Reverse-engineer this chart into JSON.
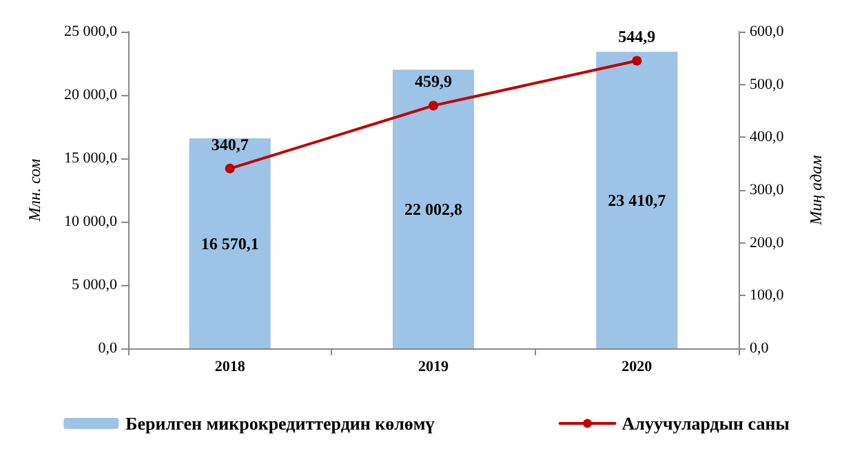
{
  "chart_data": {
    "type": "bar",
    "categories": [
      "2018",
      "2019",
      "2020"
    ],
    "ylabel": "Млн. сом",
    "y2label": "Миң адам",
    "series": [
      {
        "name": "Берилген микрокредиттердин көлөмү",
        "color": "#9dc3e6",
        "values": [
          16570.1,
          22002.8,
          23410.7
        ],
        "value_labels": [
          "16 570,1",
          "22 002,8",
          "23 410,7"
        ]
      },
      {
        "name": "Алуучулардын саны",
        "type": "line",
        "axis": "y2",
        "color": "#c00000",
        "values": [
          340.7,
          459.9,
          544.9
        ],
        "value_labels": [
          "340,7",
          "459,9",
          "544,9"
        ]
      }
    ],
    "ylim": [
      0,
      25000
    ],
    "yticks": [
      {
        "value": 0,
        "label": "0,0"
      },
      {
        "value": 5000,
        "label": "5 000,0"
      },
      {
        "value": 10000,
        "label": "10 000,0"
      },
      {
        "value": 15000,
        "label": "15 000,0"
      },
      {
        "value": 20000,
        "label": "20 000,0"
      },
      {
        "value": 25000,
        "label": "25 000,0"
      }
    ],
    "y2lim": [
      0,
      600
    ],
    "y2ticks": [
      {
        "value": 0,
        "label": "0,0"
      },
      {
        "value": 100,
        "label": "100,0"
      },
      {
        "value": 200,
        "label": "200,0"
      },
      {
        "value": 300,
        "label": "300,0"
      },
      {
        "value": 400,
        "label": "400,0"
      },
      {
        "value": 500,
        "label": "500,0"
      },
      {
        "value": 600,
        "label": "600,0"
      }
    ],
    "grid": false,
    "legend": "bottom",
    "marker": "circle",
    "line_style": "solid"
  }
}
